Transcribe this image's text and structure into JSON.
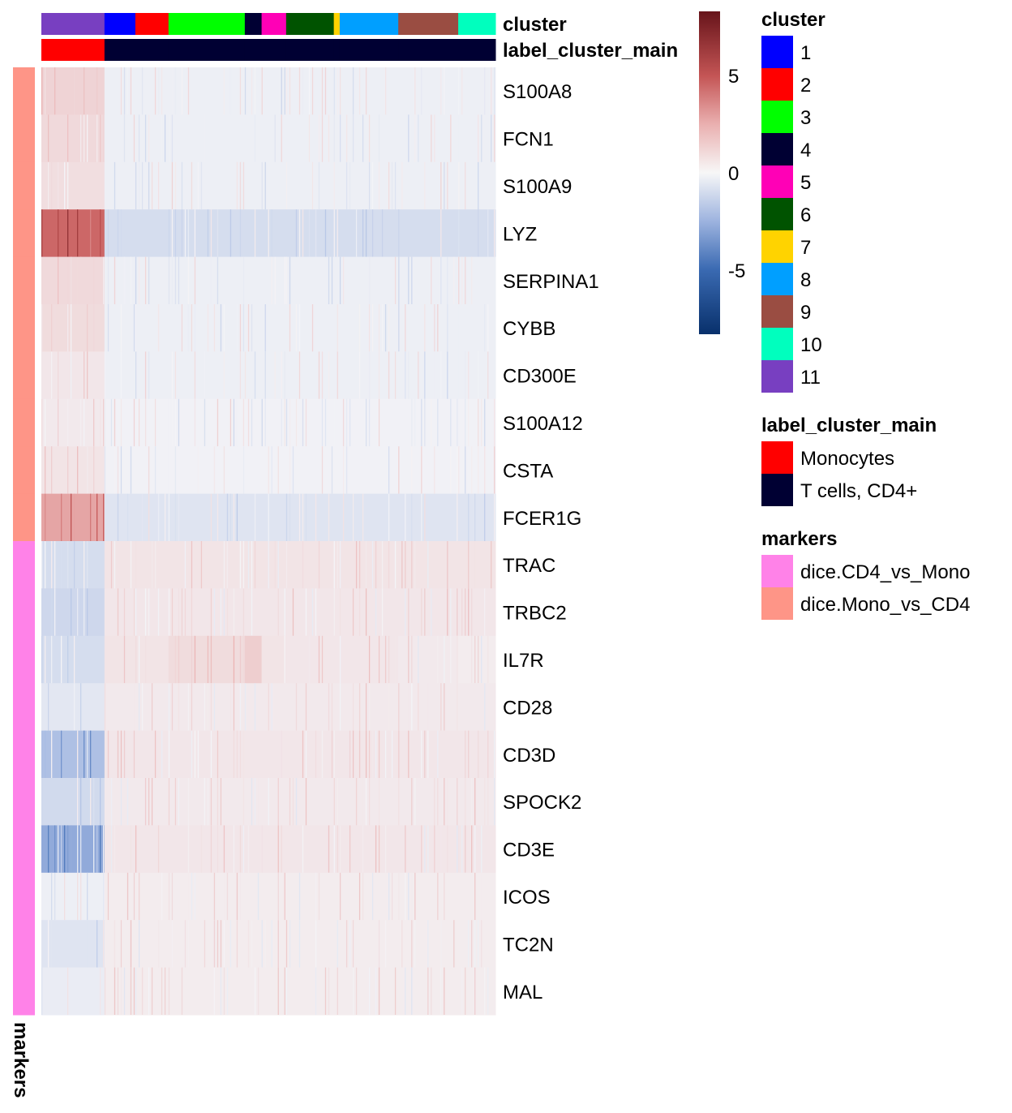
{
  "chart_data": {
    "type": "heatmap",
    "rows": [
      "S100A8",
      "FCN1",
      "S100A9",
      "LYZ",
      "SERPINA1",
      "CYBB",
      "CD300E",
      "S100A12",
      "CSTA",
      "FCER1G",
      "TRAC",
      "TRBC2",
      "IL7R",
      "CD28",
      "CD3D",
      "SPOCK2",
      "CD3E",
      "ICOS",
      "TC2N",
      "MAL"
    ],
    "row_markers": [
      "dice.Mono_vs_CD4",
      "dice.Mono_vs_CD4",
      "dice.Mono_vs_CD4",
      "dice.Mono_vs_CD4",
      "dice.Mono_vs_CD4",
      "dice.Mono_vs_CD4",
      "dice.Mono_vs_CD4",
      "dice.Mono_vs_CD4",
      "dice.Mono_vs_CD4",
      "dice.Mono_vs_CD4",
      "dice.CD4_vs_Mono",
      "dice.CD4_vs_Mono",
      "dice.CD4_vs_Mono",
      "dice.CD4_vs_Mono",
      "dice.CD4_vs_Mono",
      "dice.CD4_vs_Mono",
      "dice.CD4_vs_Mono",
      "dice.CD4_vs_Mono",
      "dice.CD4_vs_Mono",
      "dice.CD4_vs_Mono"
    ],
    "column_order_clusters": [
      "11",
      "1",
      "2",
      "3",
      "4",
      "5",
      "6",
      "7",
      "8",
      "9",
      "10"
    ],
    "column_fraction": [
      0.139,
      0.068,
      0.073,
      0.168,
      0.037,
      0.054,
      0.105,
      0.013,
      0.129,
      0.132,
      0.082
    ],
    "column_label_cluster_main": [
      "Monocytes",
      "T cells, CD4+",
      "T cells, CD4+",
      "T cells, CD4+",
      "T cells, CD4+",
      "T cells, CD4+",
      "T cells, CD4+",
      "T cells, CD4+",
      "T cells, CD4+",
      "T cells, CD4+",
      "T cells, CD4+"
    ],
    "values": [
      [
        1.2,
        -0.2,
        -0.2,
        -0.2,
        -0.2,
        -0.2,
        -0.2,
        -0.2,
        -0.2,
        -0.2,
        -0.2
      ],
      [
        1.0,
        -0.2,
        -0.2,
        -0.2,
        -0.2,
        -0.2,
        -0.2,
        -0.2,
        -0.2,
        -0.2,
        -0.2
      ],
      [
        0.8,
        -0.2,
        -0.2,
        -0.2,
        -0.2,
        -0.2,
        -0.2,
        -0.2,
        -0.2,
        -0.2,
        -0.2
      ],
      [
        4.5,
        -0.9,
        -0.9,
        -0.9,
        -0.9,
        -0.9,
        -0.9,
        -0.9,
        -0.9,
        -0.9,
        -0.9
      ],
      [
        1.0,
        -0.2,
        -0.2,
        -0.2,
        -0.2,
        -0.2,
        -0.2,
        -0.2,
        -0.2,
        -0.2,
        -0.2
      ],
      [
        0.9,
        -0.2,
        -0.2,
        -0.2,
        -0.2,
        -0.2,
        -0.2,
        -0.2,
        -0.2,
        -0.2,
        -0.2
      ],
      [
        0.5,
        -0.2,
        -0.2,
        -0.2,
        -0.2,
        -0.2,
        -0.2,
        -0.2,
        -0.2,
        -0.2,
        -0.2
      ],
      [
        0.4,
        -0.1,
        -0.1,
        -0.1,
        -0.1,
        -0.1,
        -0.1,
        -0.1,
        -0.1,
        -0.1,
        -0.1
      ],
      [
        0.6,
        -0.1,
        -0.1,
        -0.1,
        -0.1,
        -0.1,
        -0.1,
        -0.1,
        -0.1,
        -0.1,
        -0.1
      ],
      [
        2.8,
        -0.6,
        -0.6,
        -0.6,
        -0.6,
        -0.6,
        -0.6,
        -0.6,
        -0.6,
        -0.6,
        -0.6
      ],
      [
        -0.9,
        0.6,
        0.6,
        0.6,
        0.6,
        0.6,
        0.6,
        0.6,
        0.6,
        0.6,
        0.6
      ],
      [
        -1.1,
        0.5,
        0.5,
        0.5,
        0.5,
        0.5,
        0.5,
        0.5,
        0.5,
        0.5,
        0.5
      ],
      [
        -0.9,
        0.6,
        0.6,
        0.9,
        1.4,
        0.6,
        0.5,
        0.5,
        0.5,
        0.4,
        0.3
      ],
      [
        -0.5,
        0.4,
        0.4,
        0.4,
        0.4,
        0.4,
        0.4,
        0.4,
        0.4,
        0.4,
        0.4
      ],
      [
        -2.0,
        0.5,
        0.5,
        0.5,
        0.5,
        0.5,
        0.5,
        0.5,
        0.5,
        0.5,
        0.5
      ],
      [
        -1.0,
        0.4,
        0.4,
        0.4,
        0.4,
        0.4,
        0.4,
        0.4,
        0.4,
        0.4,
        0.4
      ],
      [
        -2.8,
        0.5,
        0.5,
        0.5,
        0.5,
        0.5,
        0.5,
        0.5,
        0.5,
        0.5,
        0.5
      ],
      [
        -0.2,
        0.3,
        0.3,
        0.3,
        0.3,
        0.3,
        0.3,
        0.3,
        0.3,
        0.3,
        0.3
      ],
      [
        -0.6,
        0.3,
        0.3,
        0.3,
        0.3,
        0.3,
        0.3,
        0.3,
        0.3,
        0.3,
        0.3
      ],
      [
        -0.3,
        0.3,
        0.3,
        0.3,
        0.3,
        0.3,
        0.3,
        0.3,
        0.3,
        0.3,
        0.3
      ]
    ],
    "color_scale": {
      "range": [
        -8.3,
        8.3
      ],
      "ticks": [
        "5",
        "0",
        "-5"
      ],
      "tick_values": [
        5,
        0,
        -5
      ],
      "low": "#08306b",
      "mid": "#f7f7f7",
      "high": "#67141a"
    },
    "annotation_titles": {
      "cluster": "cluster",
      "label_cluster_main": "label_cluster_main",
      "markers": "markers"
    }
  },
  "legend": {
    "cluster": {
      "title": "cluster",
      "items": [
        {
          "label": "1",
          "color": "#0000ff"
        },
        {
          "label": "2",
          "color": "#ff0000"
        },
        {
          "label": "3",
          "color": "#00ff00"
        },
        {
          "label": "4",
          "color": "#000033"
        },
        {
          "label": "5",
          "color": "#ff00b6"
        },
        {
          "label": "6",
          "color": "#005300"
        },
        {
          "label": "7",
          "color": "#ffd300"
        },
        {
          "label": "8",
          "color": "#009fff"
        },
        {
          "label": "9",
          "color": "#9a4d42"
        },
        {
          "label": "10",
          "color": "#00ffbe"
        },
        {
          "label": "11",
          "color": "#783fc1"
        }
      ]
    },
    "label_cluster_main": {
      "title": "label_cluster_main",
      "items": [
        {
          "label": "Monocytes",
          "color": "#ff0000"
        },
        {
          "label": "T cells, CD4+",
          "color": "#000033"
        }
      ]
    },
    "markers": {
      "title": "markers",
      "items": [
        {
          "label": "dice.CD4_vs_Mono",
          "color": "#ff82e8"
        },
        {
          "label": "dice.Mono_vs_CD4",
          "color": "#fe9587"
        }
      ]
    }
  }
}
